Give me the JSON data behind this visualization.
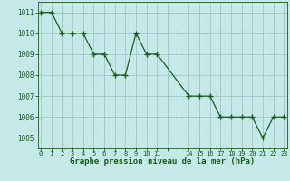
{
  "x": [
    0,
    1,
    2,
    3,
    4,
    5,
    6,
    7,
    8,
    9,
    10,
    11,
    14,
    15,
    16,
    17,
    18,
    19,
    20,
    21,
    22,
    23
  ],
  "y": [
    1011,
    1011,
    1010,
    1010,
    1010,
    1009,
    1009,
    1008,
    1008,
    1010,
    1009,
    1009,
    1007,
    1007,
    1007,
    1006,
    1006,
    1006,
    1006,
    1005,
    1006,
    1006
  ],
  "line_color": "#1a5c1a",
  "marker": "+",
  "marker_color": "#1a5c1a",
  "bg_color": "#c5e8e8",
  "grid_color": "#a0c8c8",
  "xlabel": "Graphe pression niveau de la mer (hPa)",
  "xlabel_color": "#1a5c1a",
  "tick_color": "#1a5c1a",
  "axis_color": "#1a5c1a",
  "ylim": [
    1004.5,
    1011.5
  ],
  "yticks": [
    1005,
    1006,
    1007,
    1008,
    1009,
    1010,
    1011
  ],
  "xlim": [
    -0.3,
    23.3
  ]
}
